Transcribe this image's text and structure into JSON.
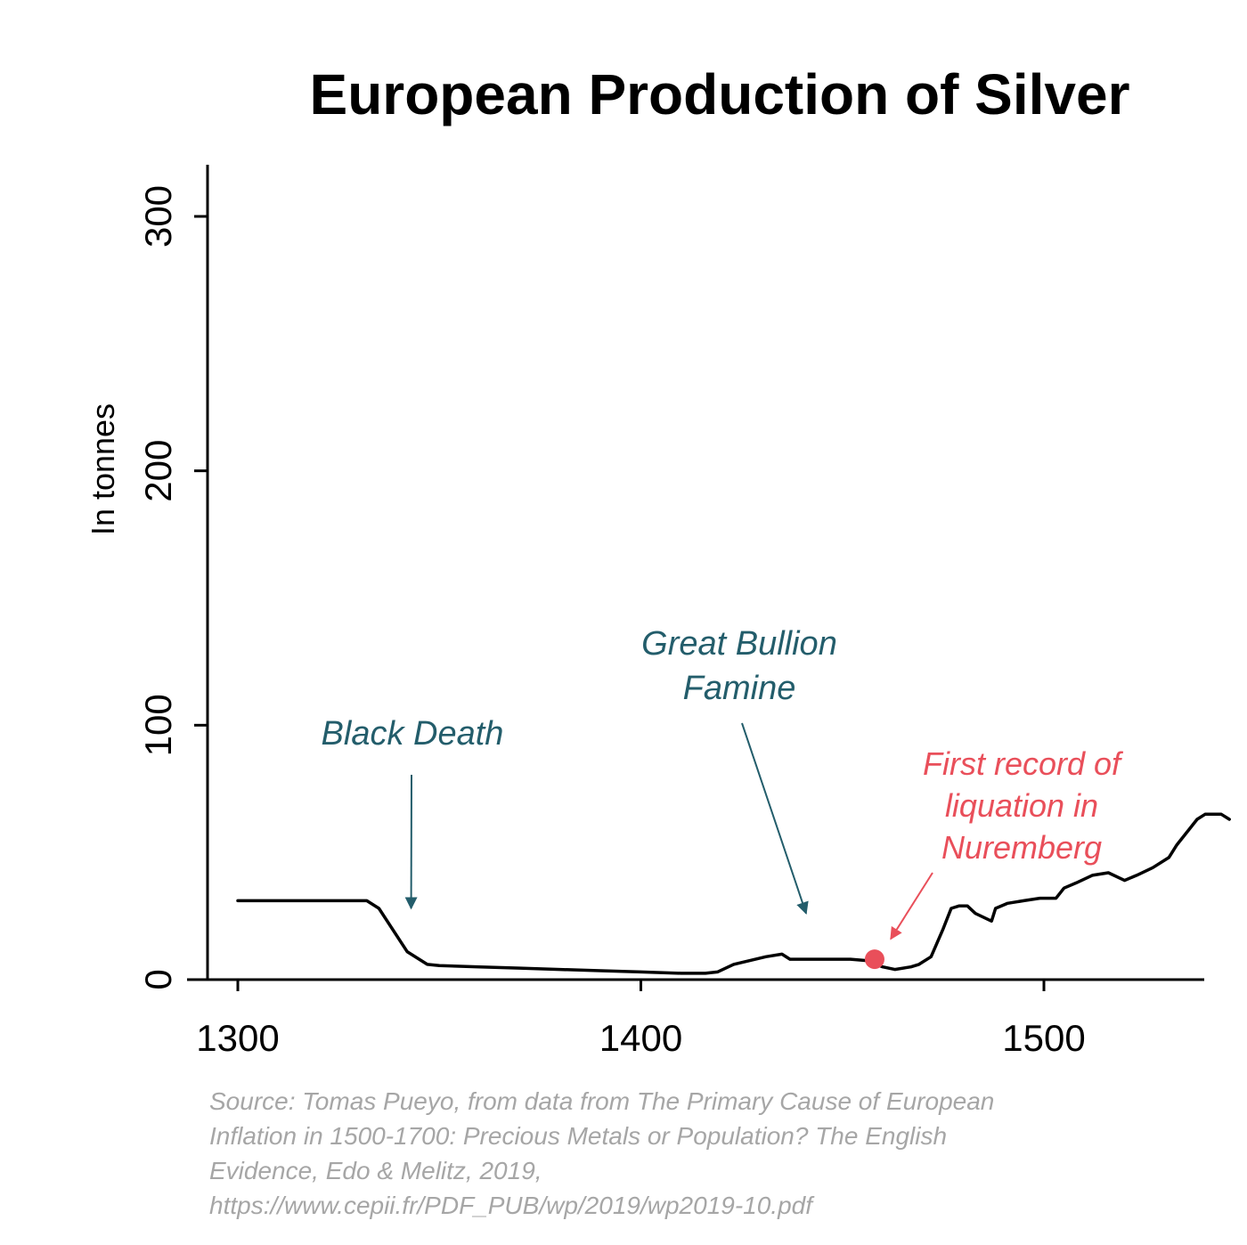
{
  "chart_data": {
    "type": "line",
    "title": "European Production of Silver",
    "ylabel": "In tonnes",
    "xlabel": "",
    "xlim": [
      1293,
      1540
    ],
    "ylim": [
      0,
      320
    ],
    "xticks": [
      "1300",
      "1400",
      "1500"
    ],
    "yticks": [
      "0",
      "100",
      "200",
      "300"
    ],
    "grid": false,
    "series": [
      {
        "color": "#000000",
        "points": [
          [
            1300,
            31
          ],
          [
            1332,
            31
          ],
          [
            1335,
            28
          ],
          [
            1342,
            11
          ],
          [
            1347,
            6
          ],
          [
            1350,
            5.5
          ],
          [
            1360,
            5
          ],
          [
            1370,
            4.5
          ],
          [
            1380,
            4
          ],
          [
            1390,
            3.5
          ],
          [
            1400,
            3
          ],
          [
            1410,
            2.5
          ],
          [
            1416,
            2.5
          ],
          [
            1419,
            3
          ],
          [
            1423,
            6
          ],
          [
            1431,
            9
          ],
          [
            1435,
            10
          ],
          [
            1437,
            8
          ],
          [
            1445,
            8
          ],
          [
            1452,
            8
          ],
          [
            1456,
            7.5
          ],
          [
            1460,
            5
          ],
          [
            1463,
            4
          ],
          [
            1467,
            5
          ],
          [
            1469,
            6
          ],
          [
            1472,
            9
          ],
          [
            1475,
            20
          ],
          [
            1477,
            28
          ],
          [
            1479,
            29
          ],
          [
            1481,
            29
          ],
          [
            1483,
            26
          ],
          [
            1487,
            23
          ],
          [
            1488,
            28
          ],
          [
            1491,
            30
          ],
          [
            1495,
            31
          ],
          [
            1499,
            32
          ],
          [
            1503,
            32
          ],
          [
            1505,
            36
          ],
          [
            1508,
            38
          ],
          [
            1512,
            41
          ],
          [
            1516,
            42
          ],
          [
            1520,
            39
          ],
          [
            1523,
            41
          ],
          [
            1527,
            44
          ],
          [
            1531,
            48
          ],
          [
            1533,
            53
          ],
          [
            1536,
            59
          ],
          [
            1538,
            63
          ],
          [
            1540,
            65
          ],
          [
            1544,
            65
          ],
          [
            1546,
            63
          ]
        ]
      }
    ],
    "highlight_point": {
      "x": 1458,
      "y": 8,
      "color": "#e94f5a"
    },
    "annotations": [
      {
        "lines": [
          "Black Death"
        ],
        "color": "#235d6b",
        "arrow_to": {
          "x": 1343,
          "y": 28
        }
      },
      {
        "lines": [
          "Great Bullion",
          "Famine"
        ],
        "color": "#235d6b",
        "arrow_to": {
          "x": 1441,
          "y": 26
        }
      },
      {
        "lines": [
          "First record of",
          "liquation in",
          "Nuremberg"
        ],
        "color": "#e94f5a",
        "arrow_to": {
          "x": 1462,
          "y": 16
        }
      }
    ],
    "source_lines": [
      "Source: Tomas Pueyo, from data from The Primary Cause of European",
      "Inflation in 1500-1700: Precious Metals or Population? The English",
      "Evidence, Edo & Melitz, 2019,",
      "https://www.cepii.fr/PDF_PUB/wp/2019/wp2019-10.pdf"
    ]
  }
}
